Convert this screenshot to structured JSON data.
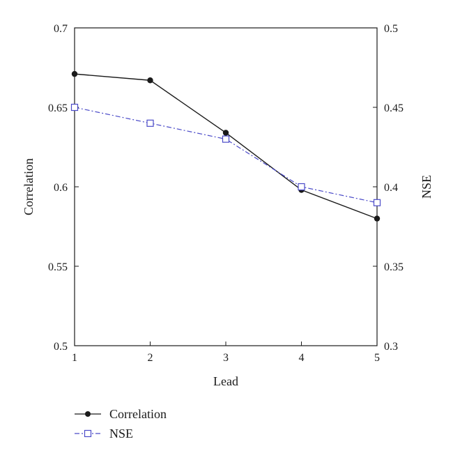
{
  "chart_data": {
    "type": "line",
    "x": [
      1,
      2,
      3,
      4,
      5
    ],
    "xlabel": "Lead",
    "ylabel_left": "Correlation",
    "ylabel_right": "NSE",
    "xlim": [
      1,
      5
    ],
    "ylim_left": [
      0.5,
      0.7
    ],
    "ylim_right": [
      0.3,
      0.5
    ],
    "x_ticks": [
      "1",
      "2",
      "3",
      "4",
      "5"
    ],
    "y_ticks_left": [
      "0.5",
      "0.55",
      "0.6",
      "0.65",
      "0.7"
    ],
    "y_ticks_right": [
      "0.3",
      "0.35",
      "0.4",
      "0.45",
      "0.5"
    ],
    "grid": false,
    "legend_position": "bottom-left",
    "series": [
      {
        "name": "Correlation",
        "axis": "left",
        "values": [
          0.671,
          0.667,
          0.634,
          0.598,
          0.58
        ],
        "color": "#1a1a1a",
        "line_style": "solid",
        "marker": "filled-circle"
      },
      {
        "name": "NSE",
        "axis": "right",
        "values": [
          0.45,
          0.44,
          0.43,
          0.4,
          0.39
        ],
        "color": "#4a4ac8",
        "line_style": "dash-dot",
        "marker": "open-square"
      }
    ]
  }
}
